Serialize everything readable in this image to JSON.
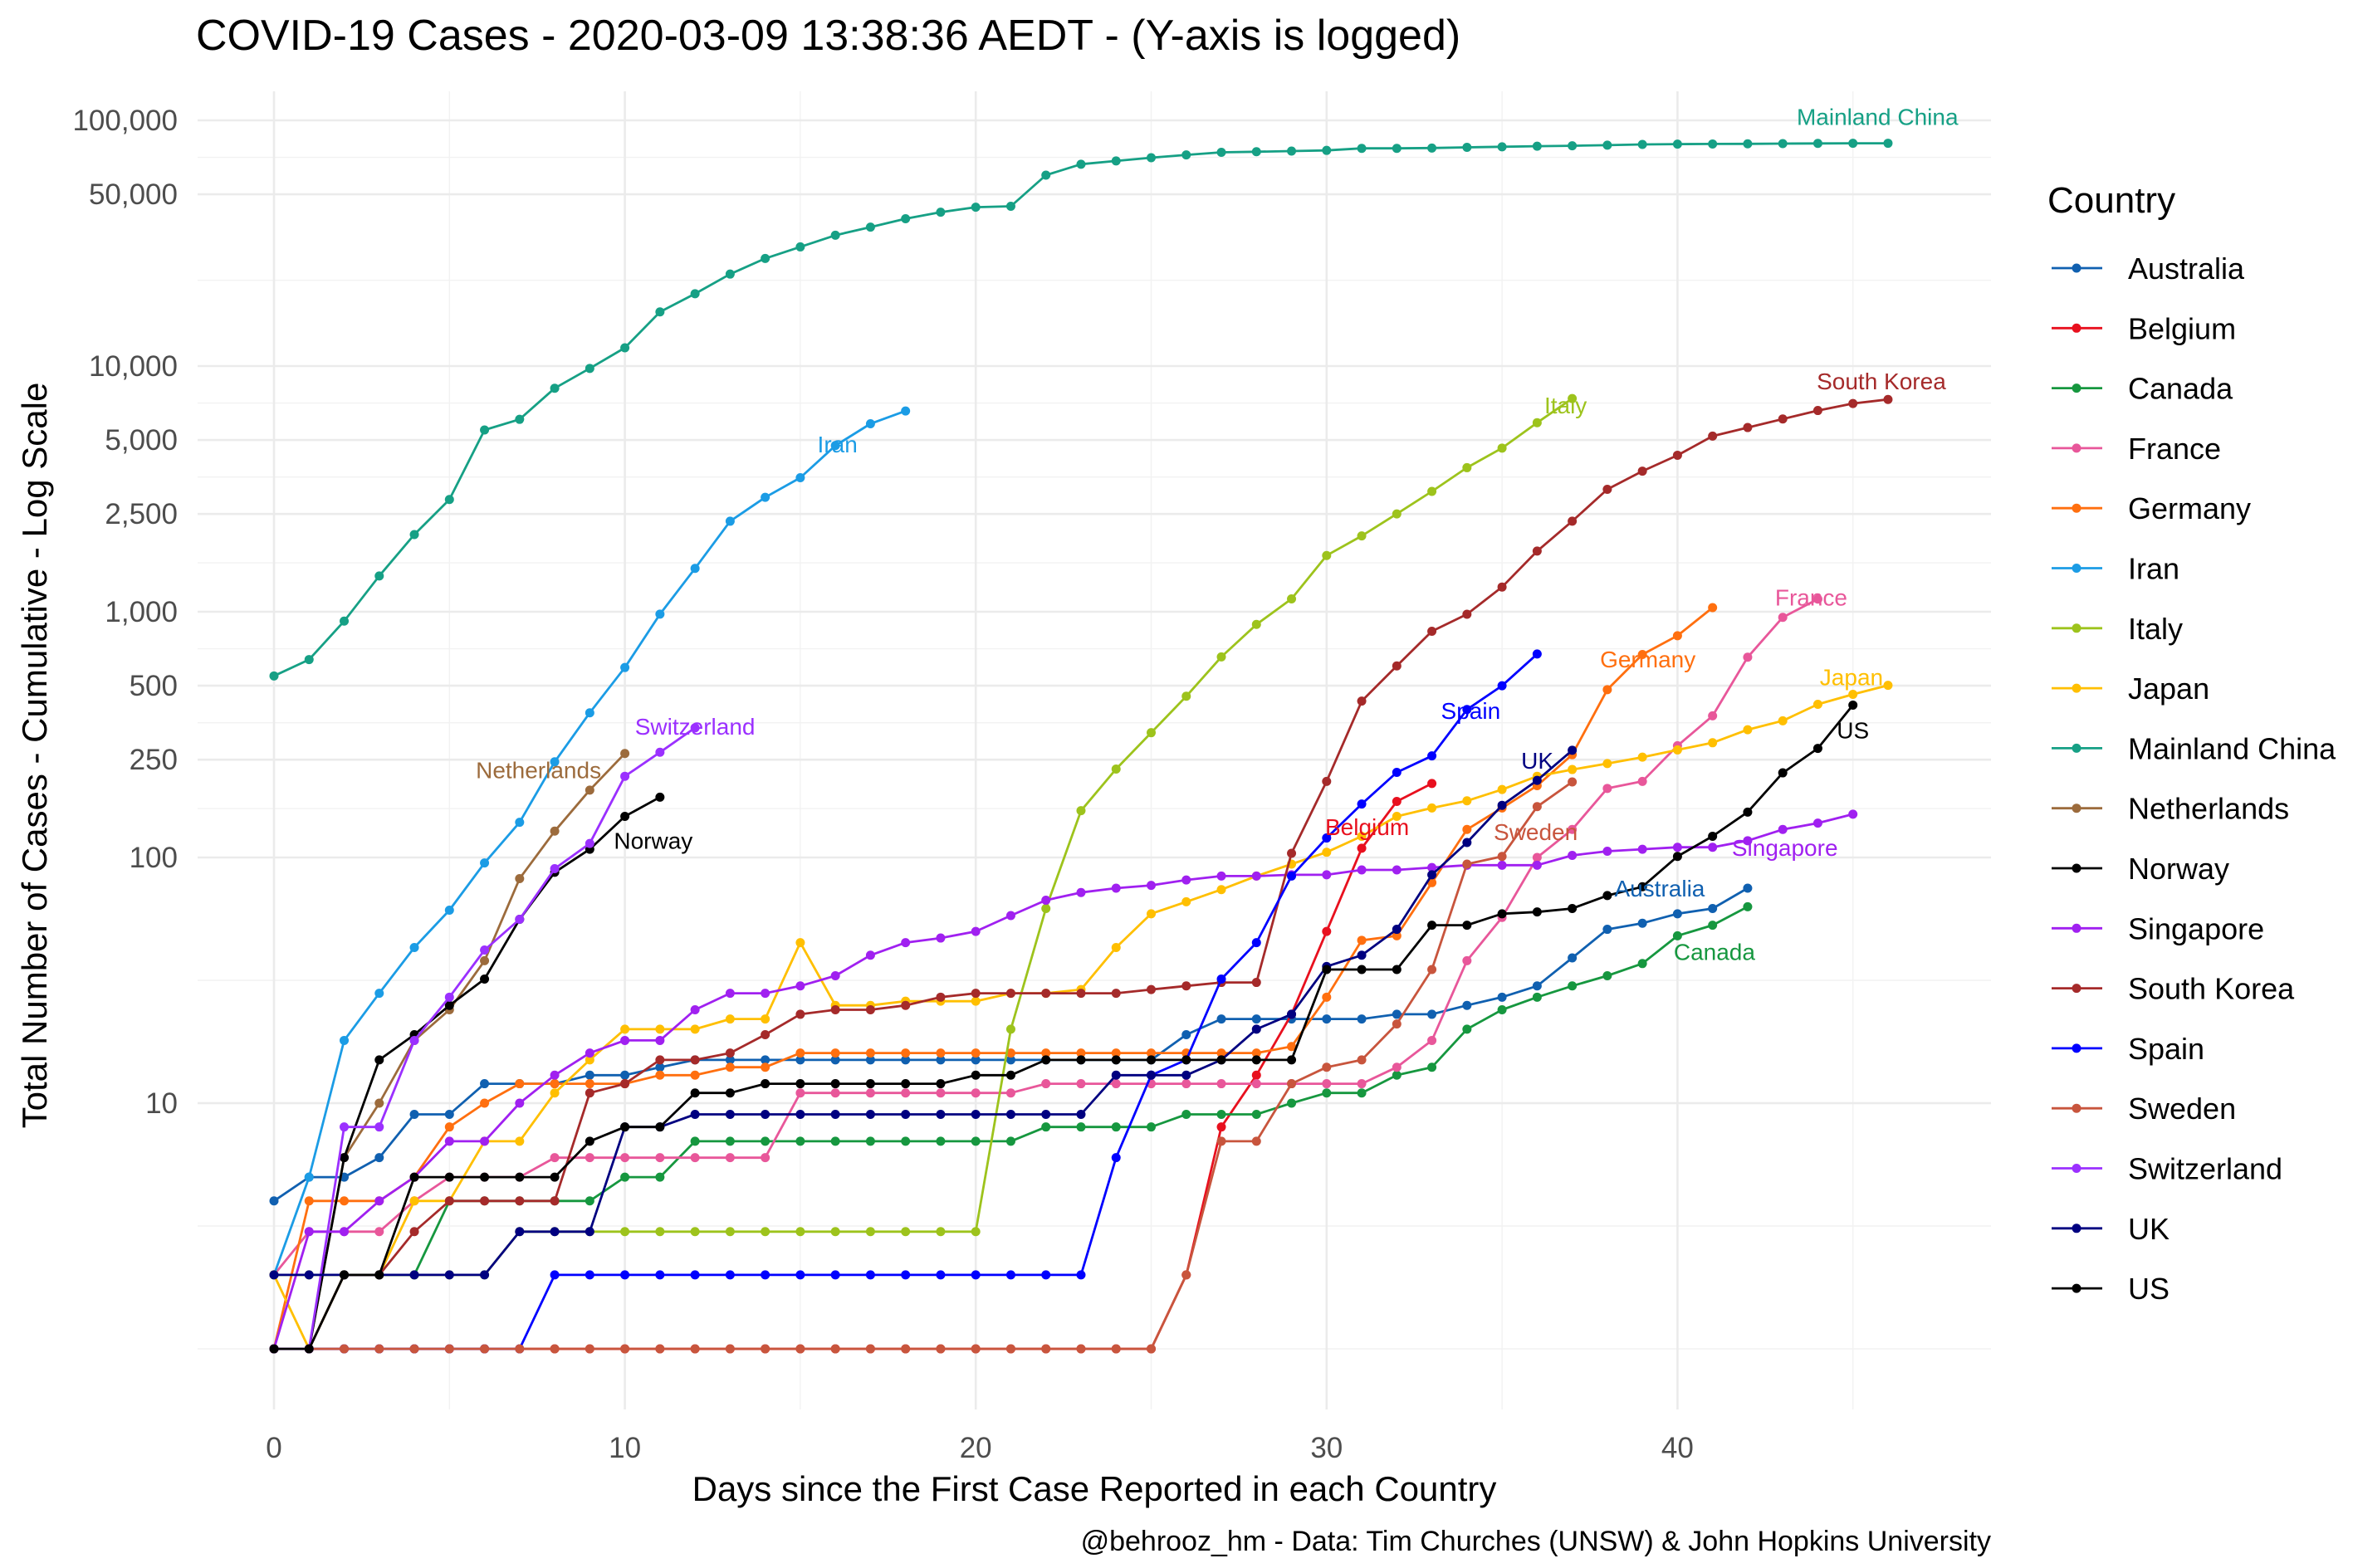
{
  "chart_data": {
    "type": "line",
    "title": "COVID-19 Cases - 2020-03-09 13:38:36 AEDT - (Y-axis is logged)",
    "xlabel": "Days since the First Case Reported in each Country",
    "ylabel": "Total Number of Cases - Cumulative - Log Scale",
    "caption": "@behrooz_hm - Data: Tim Churches (UNSW) & John Hopkins University",
    "y_scale": "log10",
    "ylim": [
      1,
      100000
    ],
    "xlim": [
      0,
      46
    ],
    "x_ticks": [
      0,
      10,
      20,
      30,
      40
    ],
    "x_tick_labels": [
      "0",
      "10",
      "20",
      "30",
      "40"
    ],
    "y_ticks": [
      10,
      100,
      250,
      500,
      1000,
      2500,
      5000,
      10000,
      50000,
      100000
    ],
    "y_tick_labels": [
      "10",
      "100",
      "250",
      "500",
      "1,000",
      "2,500",
      "5,000",
      "10,000",
      "50,000",
      "100,000"
    ],
    "grid": true,
    "legend": {
      "title": "Country",
      "position": "right"
    },
    "series": [
      {
        "name": "Australia",
        "color": "#1060b0",
        "values": [
          4,
          5,
          5,
          6,
          9,
          9,
          12,
          12,
          12,
          13,
          13,
          14,
          15,
          15,
          15,
          15,
          15,
          15,
          15,
          15,
          15,
          15,
          15,
          15,
          15,
          15,
          19,
          22,
          22,
          22,
          22,
          22,
          23,
          23,
          25,
          27,
          30,
          39,
          51,
          54,
          59,
          62,
          75
        ]
      },
      {
        "name": "Belgium",
        "color": "#e8101e",
        "values": [
          1,
          1,
          1,
          1,
          1,
          1,
          1,
          1,
          1,
          1,
          1,
          1,
          1,
          1,
          1,
          1,
          1,
          1,
          1,
          1,
          1,
          1,
          1,
          1,
          1,
          1,
          2,
          8,
          13,
          23,
          50,
          109,
          169,
          200
        ]
      },
      {
        "name": "Canada",
        "color": "#16973f",
        "values": [
          1,
          1,
          2,
          2,
          2,
          4,
          4,
          4,
          4,
          4,
          5,
          5,
          7,
          7,
          7,
          7,
          7,
          7,
          7,
          7,
          7,
          7,
          8,
          8,
          8,
          8,
          9,
          9,
          9,
          10,
          11,
          11,
          13,
          14,
          20,
          24,
          27,
          30,
          33,
          37,
          48,
          53,
          63
        ]
      },
      {
        "name": "France",
        "color": "#e8579a",
        "values": [
          2,
          3,
          3,
          3,
          4,
          5,
          5,
          5,
          6,
          6,
          6,
          6,
          6,
          6,
          6,
          11,
          11,
          11,
          11,
          11,
          11,
          11,
          12,
          12,
          12,
          12,
          12,
          12,
          12,
          12,
          12,
          12,
          14,
          18,
          38,
          57,
          100,
          130,
          191,
          204,
          285,
          377,
          653,
          949,
          1126
        ]
      },
      {
        "name": "Germany",
        "color": "#ff6f0f",
        "values": [
          1,
          4,
          4,
          4,
          5,
          8,
          10,
          12,
          12,
          12,
          12,
          13,
          13,
          14,
          14,
          16,
          16,
          16,
          16,
          16,
          16,
          16,
          16,
          16,
          16,
          16,
          16,
          16,
          16,
          17,
          27,
          46,
          48,
          79,
          130,
          159,
          196,
          262,
          482,
          670,
          799,
          1040
        ]
      },
      {
        "name": "Iran",
        "color": "#1b9ce5",
        "values": [
          2,
          5,
          18,
          28,
          43,
          61,
          95,
          139,
          245,
          388,
          593,
          978,
          1501,
          2336,
          2922,
          3513,
          4747,
          5823,
          6566
        ]
      },
      {
        "name": "Italy",
        "color": "#9dc31c",
        "values": [
          2,
          2,
          2,
          2,
          2,
          2,
          2,
          3,
          3,
          3,
          3,
          3,
          3,
          3,
          3,
          3,
          3,
          3,
          3,
          3,
          3,
          20,
          62,
          155,
          229,
          322,
          453,
          655,
          888,
          1128,
          1694,
          2036,
          2502,
          3089,
          3858,
          4636,
          5883,
          7375
        ]
      },
      {
        "name": "Japan",
        "color": "#ffbf00",
        "values": [
          2,
          1,
          2,
          2,
          4,
          4,
          7,
          7,
          11,
          15,
          20,
          20,
          20,
          22,
          22,
          45,
          25,
          25,
          26,
          26,
          26,
          28,
          28,
          29,
          43,
          59,
          66,
          74,
          84,
          94,
          105,
          122,
          147,
          159,
          170,
          189,
          214,
          228,
          241,
          256,
          274,
          293,
          331,
          360,
          420,
          461,
          502
        ]
      },
      {
        "name": "Mainland China",
        "color": "#16a085",
        "values": [
          548,
          639,
          916,
          1399,
          2062,
          2863,
          5494,
          6070,
          8124,
          9783,
          11871,
          16607,
          19693,
          23680,
          27409,
          30553,
          34075,
          36778,
          39790,
          42306,
          44327,
          44699,
          59832,
          66292,
          68347,
          70446,
          72364,
          74139,
          74546,
          74999,
          75472,
          76922,
          76938,
          77152,
          77660,
          78065,
          78498,
          78824,
          79251,
          79826,
          80026,
          80151,
          80271,
          80422,
          80573,
          80652,
          80699
        ]
      },
      {
        "name": "Netherlands",
        "color": "#9c6b3c",
        "values": [
          1,
          1,
          6,
          10,
          18,
          24,
          38,
          82,
          128,
          188,
          265
        ]
      },
      {
        "name": "Norway",
        "color": "#000000",
        "values": [
          1,
          1,
          6,
          15,
          19,
          25,
          32,
          56,
          87,
          108,
          147,
          176
        ]
      },
      {
        "name": "Singapore",
        "color": "#a020f0",
        "values": [
          1,
          3,
          3,
          4,
          5,
          7,
          7,
          10,
          13,
          16,
          18,
          18,
          24,
          28,
          28,
          30,
          33,
          40,
          45,
          47,
          50,
          58,
          67,
          72,
          75,
          77,
          81,
          84,
          84,
          85,
          85,
          89,
          89,
          91,
          93,
          93,
          93,
          102,
          106,
          108,
          110,
          110,
          117,
          130,
          138,
          150
        ]
      },
      {
        "name": "South Korea",
        "color": "#a52a2a",
        "values": [
          1,
          1,
          2,
          2,
          3,
          4,
          4,
          4,
          4,
          11,
          12,
          15,
          15,
          16,
          19,
          23,
          24,
          24,
          25,
          27,
          28,
          28,
          28,
          28,
          28,
          29,
          30,
          31,
          31,
          104,
          204,
          433,
          602,
          833,
          977,
          1261,
          1766,
          2337,
          3150,
          3736,
          4335,
          5186,
          5621,
          6088,
          6593,
          7041,
          7314
        ]
      },
      {
        "name": "Spain",
        "color": "#0000ff",
        "values": [
          1,
          1,
          1,
          1,
          1,
          1,
          1,
          1,
          2,
          2,
          2,
          2,
          2,
          2,
          2,
          2,
          2,
          2,
          2,
          2,
          2,
          2,
          2,
          2,
          6,
          13,
          15,
          32,
          45,
          84,
          120,
          165,
          222,
          259,
          400,
          500,
          673
        ]
      },
      {
        "name": "Sweden",
        "color": "#c8553d",
        "values": [
          1,
          1,
          1,
          1,
          1,
          1,
          1,
          1,
          1,
          1,
          1,
          1,
          1,
          1,
          1,
          1,
          1,
          1,
          1,
          1,
          1,
          1,
          1,
          1,
          1,
          1,
          2,
          7,
          7,
          12,
          14,
          15,
          21,
          35,
          94,
          101,
          161,
          203
        ]
      },
      {
        "name": "Switzerland",
        "color": "#9b30ff",
        "values": [
          1,
          1,
          8,
          8,
          18,
          27,
          42,
          56,
          90,
          114,
          214,
          268,
          337
        ]
      },
      {
        "name": "UK",
        "color": "#000080",
        "values": [
          2,
          2,
          2,
          2,
          2,
          2,
          2,
          3,
          3,
          3,
          8,
          8,
          9,
          9,
          9,
          9,
          9,
          9,
          9,
          9,
          9,
          9,
          9,
          9,
          13,
          13,
          13,
          15,
          20,
          23,
          36,
          40,
          51,
          85,
          115,
          163,
          206,
          273
        ]
      },
      {
        "name": "US",
        "color": "#000000",
        "values": [
          1,
          1,
          2,
          2,
          5,
          5,
          5,
          5,
          5,
          7,
          8,
          8,
          11,
          11,
          12,
          12,
          12,
          12,
          12,
          12,
          13,
          13,
          15,
          15,
          15,
          15,
          15,
          15,
          15,
          15,
          35,
          35,
          35,
          53,
          53,
          59,
          60,
          62,
          70,
          76,
          101,
          122,
          153,
          221,
          278,
          417
        ]
      }
    ]
  }
}
